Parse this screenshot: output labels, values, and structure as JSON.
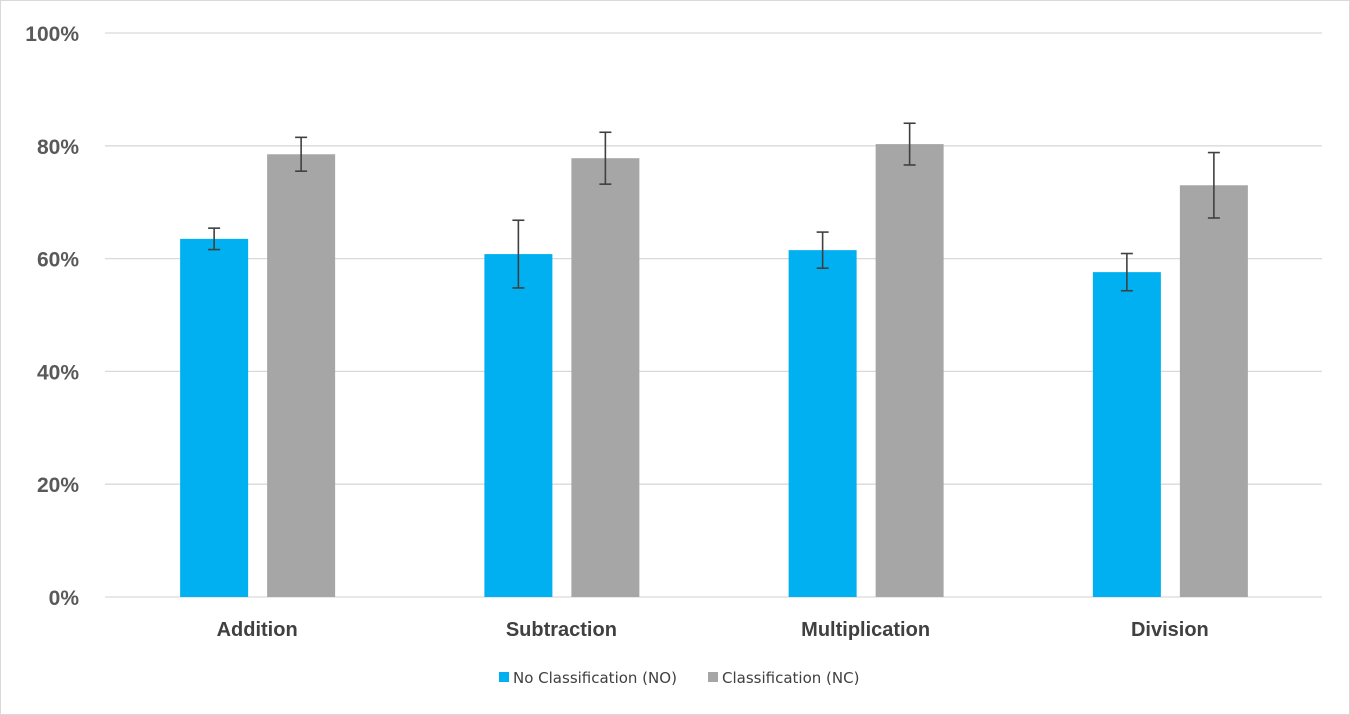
{
  "chart_data": {
    "type": "bar",
    "categories": [
      "Addition",
      "Subtraction",
      "Multiplication",
      "Division"
    ],
    "series": [
      {
        "name": "No Classification (NO)",
        "color": "#00b0f0",
        "values": [
          63.5,
          60.8,
          61.5,
          57.6
        ],
        "errors": [
          1.9,
          6.0,
          3.2,
          3.3
        ]
      },
      {
        "name": "Classification (NC)",
        "color": "#a6a6a6",
        "values": [
          78.5,
          77.8,
          80.3,
          73.0
        ],
        "errors": [
          3.0,
          4.6,
          3.7,
          5.8
        ]
      }
    ],
    "ylim": [
      0,
      100
    ],
    "yticks": [
      "0%",
      "20%",
      "40%",
      "60%",
      "80%",
      "100%"
    ],
    "ytick_values": [
      0,
      20,
      40,
      60,
      80,
      100
    ],
    "grid": true,
    "legend_position": "bottom",
    "gridline_color": "#d9d9d9",
    "errorbar_color": "#404040"
  }
}
